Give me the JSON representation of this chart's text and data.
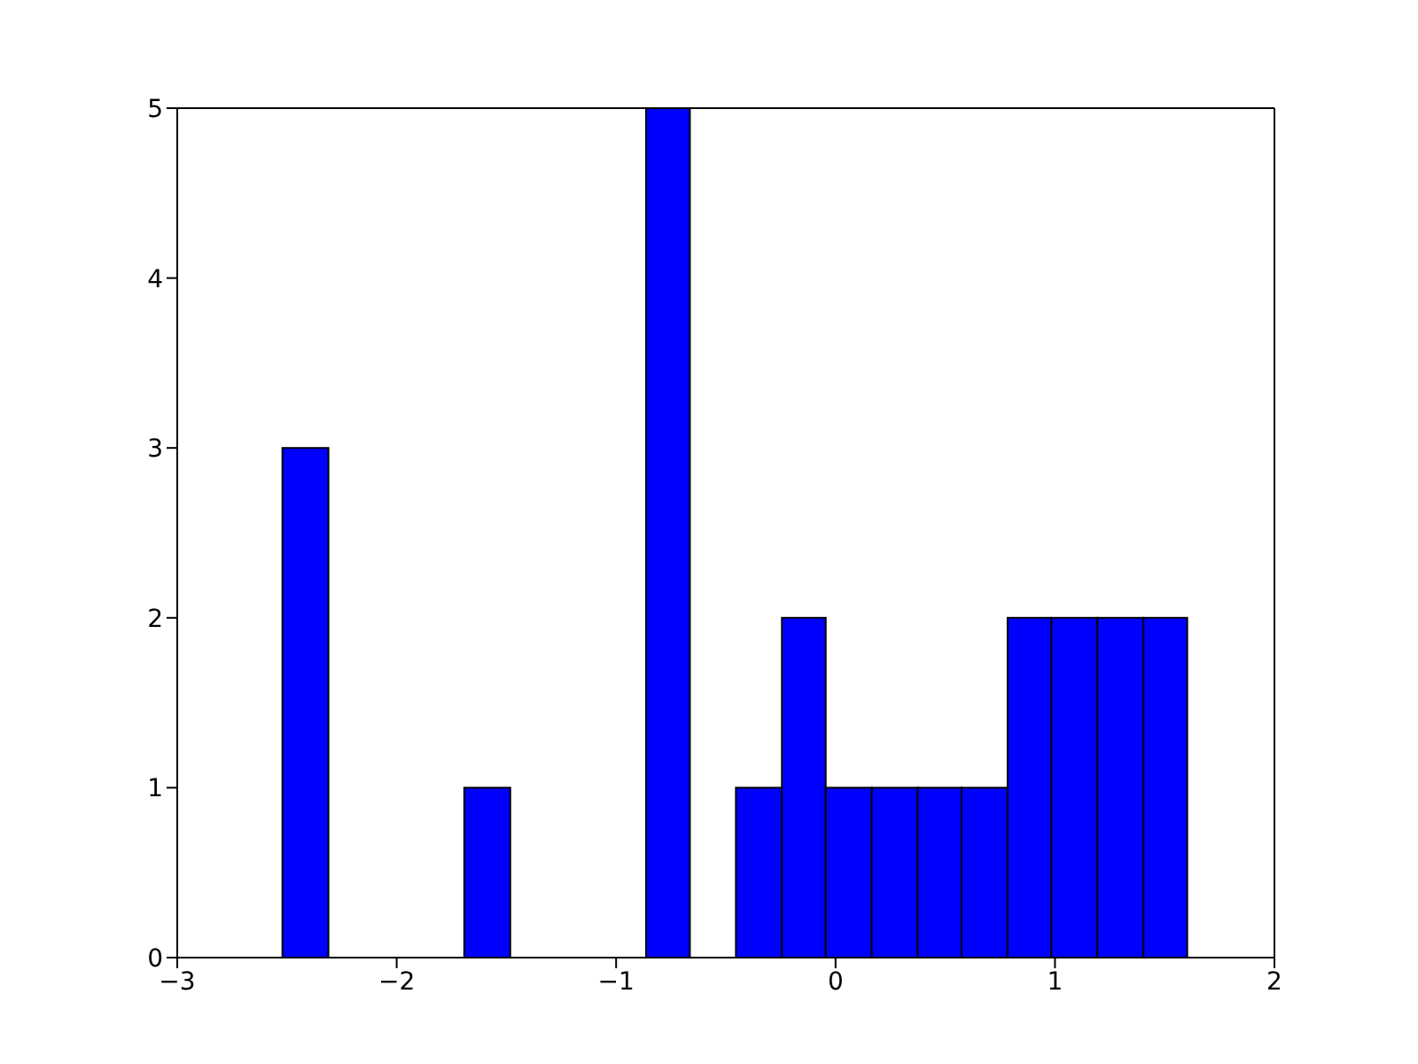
{
  "chart_data": {
    "type": "histogram",
    "bins": [
      -2.52,
      -2.31,
      -1.69,
      -1.48,
      -0.86,
      -0.66,
      -0.45,
      -0.24,
      -0.04,
      0.17,
      0.38,
      0.58,
      0.79,
      0.99,
      1.2,
      1.41,
      1.61
    ],
    "values": [
      3,
      0,
      1,
      0,
      5,
      0,
      1,
      2,
      1,
      1,
      1,
      1,
      2,
      2,
      2,
      2
    ],
    "color": "#0000ff",
    "xlim": [
      -3,
      2
    ],
    "xticks": [
      {
        "value": -3,
        "label": "−3"
      },
      {
        "value": -2,
        "label": "−2"
      },
      {
        "value": -1,
        "label": "−1"
      },
      0,
      1,
      2
    ],
    "ylim": [
      0,
      5
    ],
    "yticks": [
      0,
      1,
      2,
      3,
      4,
      5
    ],
    "grid": false,
    "legend": false
  }
}
